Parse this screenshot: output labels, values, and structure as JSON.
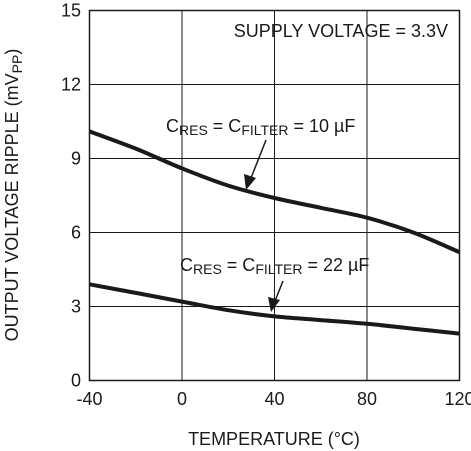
{
  "chart_data": {
    "type": "line",
    "xlabel": "TEMPERATURE (°C)",
    "ylabel": {
      "main": "OUTPUT VOLTAGE RIPPLE (mV",
      "sub": "PP",
      "close": ")"
    },
    "xlim": [
      -40,
      120
    ],
    "ylim": [
      0,
      15
    ],
    "xticks": [
      "-40",
      "0",
      "40",
      "80",
      "120"
    ],
    "yticks": [
      "0",
      "3",
      "6",
      "9",
      "12",
      "15"
    ],
    "grid": true,
    "annotation": "SUPPLY VOLTAGE = 3.3V",
    "series": [
      {
        "label_parts": [
          "C",
          "RES",
          " = C",
          "FILTER",
          " = 10 µF"
        ],
        "x": [
          -40,
          -20,
          0,
          20,
          40,
          60,
          80,
          100,
          120
        ],
        "y": [
          10.1,
          9.4,
          8.6,
          7.9,
          7.4,
          7.0,
          6.6,
          6.0,
          5.2
        ]
      },
      {
        "label_parts": [
          "C",
          "RES",
          " = C",
          "FILTER",
          " = 22 µF"
        ],
        "x": [
          -40,
          -20,
          0,
          20,
          40,
          60,
          80,
          100,
          120
        ],
        "y": [
          3.9,
          3.55,
          3.2,
          2.85,
          2.6,
          2.45,
          2.3,
          2.1,
          1.9
        ]
      }
    ]
  }
}
